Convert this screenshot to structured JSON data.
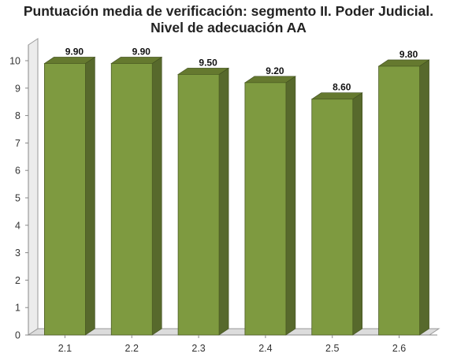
{
  "chart_data": {
    "type": "bar",
    "title_line1": "Puntuación media de verificación: segmento II. Poder Judicial.",
    "title_line2": "Nivel de adecuación AA",
    "categories": [
      "2.1",
      "2.2",
      "2.3",
      "2.4",
      "2.5",
      "2.6"
    ],
    "values": [
      9.9,
      9.9,
      9.5,
      9.2,
      8.6,
      9.8
    ],
    "value_labels": [
      "9.90",
      "9.90",
      "9.50",
      "9.20",
      "8.60",
      "9.80"
    ],
    "xlabel": "",
    "ylabel": "",
    "ylim": [
      0,
      10
    ],
    "yticks": [
      "0",
      "1",
      "2",
      "3",
      "4",
      "5",
      "6",
      "7",
      "8",
      "9",
      "10"
    ],
    "grid": false,
    "legend": "none",
    "style": "3d",
    "colors": {
      "bar_front": "#7e9a40",
      "bar_side": "#57692c",
      "bar_top": "#65792f",
      "floor": "#dcdcdc",
      "wall": "#ececec"
    }
  }
}
